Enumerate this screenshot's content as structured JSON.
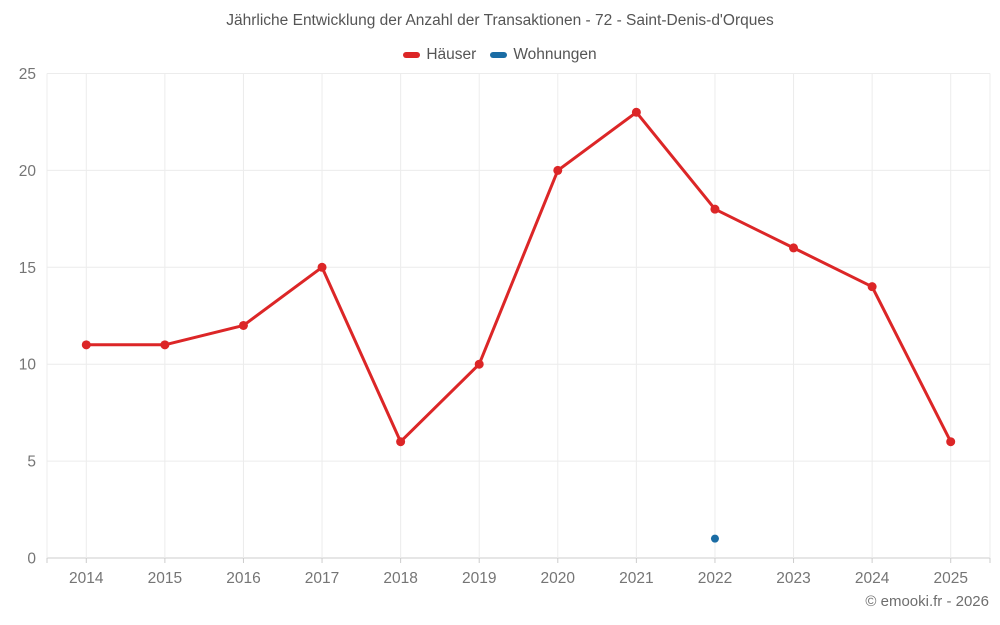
{
  "footer": {
    "text": "© emooki.fr - 2026"
  },
  "chart_data": {
    "type": "line",
    "title": "Jährliche Entwicklung der Anzahl der Transaktionen - 72 - Saint-Denis-d'Orques",
    "categories": [
      "2014",
      "2015",
      "2016",
      "2017",
      "2018",
      "2019",
      "2020",
      "2021",
      "2022",
      "2023",
      "2024",
      "2025"
    ],
    "series": [
      {
        "name": "Häuser",
        "color": "#dc2627",
        "marker_radius": 4.5,
        "values": [
          11,
          11,
          12,
          15,
          6,
          10,
          20,
          23,
          18,
          16,
          14,
          6
        ]
      },
      {
        "name": "Wohnungen",
        "color": "#1a6ca4",
        "marker_radius": 4,
        "values": [
          null,
          null,
          null,
          null,
          null,
          null,
          null,
          null,
          1,
          null,
          null,
          null
        ]
      }
    ],
    "xlabel": "",
    "ylabel": "",
    "ylim": [
      0,
      25
    ],
    "yticks": [
      0,
      5,
      10,
      15,
      20,
      25
    ],
    "grid": true,
    "legend_position": "top",
    "colors": {
      "grid_line": "#ececec",
      "axis_line": "#cccccc",
      "axis_label": "#757575"
    }
  }
}
